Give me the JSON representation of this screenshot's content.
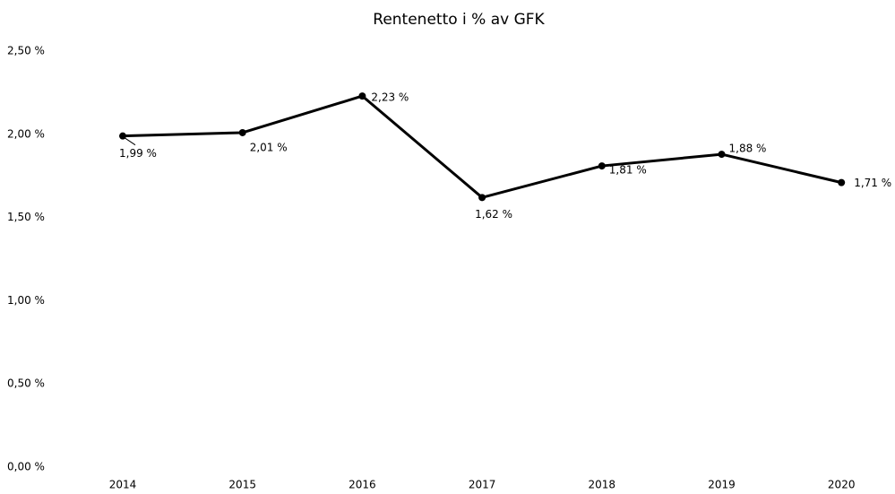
{
  "chart_data": {
    "type": "line",
    "title": "Rentenetto i % av GFK",
    "categories": [
      "2014",
      "2015",
      "2016",
      "2017",
      "2018",
      "2019",
      "2020"
    ],
    "series": [
      {
        "name": "Rentenetto i % av GFK",
        "color": "#000000",
        "values": [
          1.99,
          2.01,
          2.23,
          1.62,
          1.81,
          1.88,
          1.71
        ],
        "value_labels": [
          "1,99 %",
          "2,01 %",
          "2,23 %",
          "1,62 %",
          "1,81 %",
          "1,88 %",
          "1,71 %"
        ]
      }
    ],
    "ylim": [
      0,
      2.5
    ],
    "yticks": [
      {
        "value": 0,
        "label": "0,00 %"
      },
      {
        "value": 0.5,
        "label": "0,50 %"
      },
      {
        "value": 1,
        "label": "1,00 %"
      },
      {
        "value": 1.5,
        "label": "1,50 %"
      },
      {
        "value": 2,
        "label": "2,00 %"
      },
      {
        "value": 2.5,
        "label": "2,50 %"
      }
    ],
    "grid": false
  }
}
